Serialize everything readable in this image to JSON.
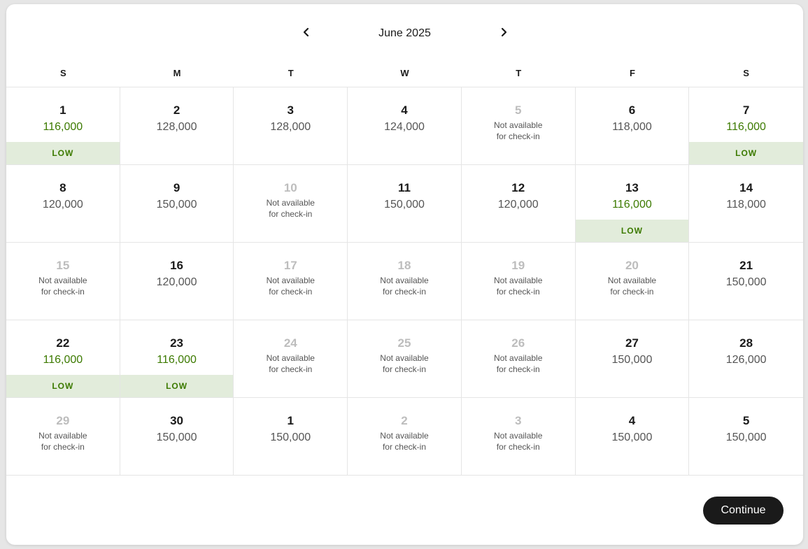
{
  "calendar": {
    "month_title": "June 2025",
    "weekdays": [
      "S",
      "M",
      "T",
      "W",
      "T",
      "F",
      "S"
    ],
    "unavailable_line1": "Not available",
    "unavailable_line2": "for check-in",
    "low_label": "LOW",
    "days": [
      {
        "day": "1",
        "price": "116,000",
        "status": "low"
      },
      {
        "day": "2",
        "price": "128,000",
        "status": "available"
      },
      {
        "day": "3",
        "price": "128,000",
        "status": "available"
      },
      {
        "day": "4",
        "price": "124,000",
        "status": "available"
      },
      {
        "day": "5",
        "price": null,
        "status": "unavailable"
      },
      {
        "day": "6",
        "price": "118,000",
        "status": "available"
      },
      {
        "day": "7",
        "price": "116,000",
        "status": "low"
      },
      {
        "day": "8",
        "price": "120,000",
        "status": "available"
      },
      {
        "day": "9",
        "price": "150,000",
        "status": "available"
      },
      {
        "day": "10",
        "price": null,
        "status": "unavailable"
      },
      {
        "day": "11",
        "price": "150,000",
        "status": "available"
      },
      {
        "day": "12",
        "price": "120,000",
        "status": "available"
      },
      {
        "day": "13",
        "price": "116,000",
        "status": "low"
      },
      {
        "day": "14",
        "price": "118,000",
        "status": "available"
      },
      {
        "day": "15",
        "price": null,
        "status": "unavailable"
      },
      {
        "day": "16",
        "price": "120,000",
        "status": "available"
      },
      {
        "day": "17",
        "price": null,
        "status": "unavailable"
      },
      {
        "day": "18",
        "price": null,
        "status": "unavailable"
      },
      {
        "day": "19",
        "price": null,
        "status": "unavailable"
      },
      {
        "day": "20",
        "price": null,
        "status": "unavailable"
      },
      {
        "day": "21",
        "price": "150,000",
        "status": "available"
      },
      {
        "day": "22",
        "price": "116,000",
        "status": "low"
      },
      {
        "day": "23",
        "price": "116,000",
        "status": "low"
      },
      {
        "day": "24",
        "price": null,
        "status": "unavailable"
      },
      {
        "day": "25",
        "price": null,
        "status": "unavailable"
      },
      {
        "day": "26",
        "price": null,
        "status": "unavailable"
      },
      {
        "day": "27",
        "price": "150,000",
        "status": "available"
      },
      {
        "day": "28",
        "price": "126,000",
        "status": "available"
      },
      {
        "day": "29",
        "price": null,
        "status": "unavailable"
      },
      {
        "day": "30",
        "price": "150,000",
        "status": "available"
      },
      {
        "day": "1",
        "price": "150,000",
        "status": "available"
      },
      {
        "day": "2",
        "price": null,
        "status": "unavailable"
      },
      {
        "day": "3",
        "price": null,
        "status": "unavailable"
      },
      {
        "day": "4",
        "price": "150,000",
        "status": "available"
      },
      {
        "day": "5",
        "price": "150,000",
        "status": "available"
      }
    ]
  },
  "icons": {
    "prev": "chevron-left-icon",
    "next": "chevron-right-icon"
  },
  "colors": {
    "low_price": "#3c7a00",
    "low_badge_bg": "#e2ecdb",
    "button_bg": "#1a1a1a"
  },
  "footer": {
    "continue_label": "Continue"
  }
}
